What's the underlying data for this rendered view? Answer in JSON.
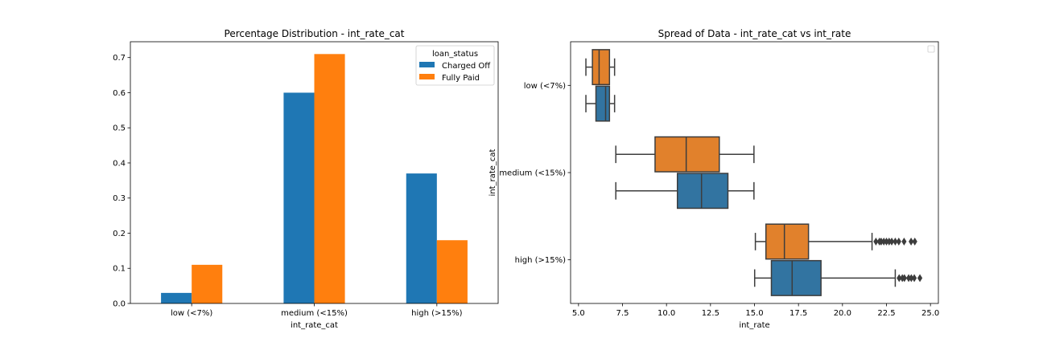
{
  "chart_data": [
    {
      "type": "bar",
      "title": "Percentage Distribution - int_rate_cat",
      "xlabel": "int_rate_cat",
      "ylabel": "",
      "categories": [
        "low (<7%)",
        "medium (<15%)",
        "high (>15%)"
      ],
      "series": [
        {
          "name": "Charged Off",
          "values": [
            0.03,
            0.6,
            0.37
          ],
          "color": "#1f77b4"
        },
        {
          "name": "Fully Paid",
          "values": [
            0.11,
            0.71,
            0.18
          ],
          "color": "#ff7f0e"
        }
      ],
      "ylim": [
        0,
        0.745
      ],
      "yticks": [
        "0.0",
        "0.1",
        "0.2",
        "0.3",
        "0.4",
        "0.5",
        "0.6",
        "0.7"
      ],
      "legend": {
        "title": "loan_status",
        "placement": "top-right"
      },
      "grid": false
    },
    {
      "type": "box",
      "orientation": "horizontal",
      "title": "Spread of Data - int_rate_cat vs int_rate",
      "xlabel": "int_rate",
      "ylabel": "int_rate_cat",
      "categories": [
        "low (<7%)",
        "medium (<15%)",
        "high (>15%)"
      ],
      "xlim": [
        4.55,
        25.45
      ],
      "xticks": [
        "5.0",
        "7.5",
        "10.0",
        "12.5",
        "15.0",
        "17.5",
        "20.0",
        "22.5",
        "25.0"
      ],
      "legend": {
        "placement": "top-right",
        "entries": []
      },
      "grid": false,
      "boxes": [
        {
          "category": "low (<7%)",
          "hue": "Fully Paid",
          "color": "#e1812c",
          "whislo": 5.42,
          "q1": 5.79,
          "median": 6.17,
          "q3": 6.76,
          "whishi": 7.05,
          "fliers": []
        },
        {
          "category": "low (<7%)",
          "hue": "Charged Off",
          "color": "#3274a1",
          "whislo": 5.42,
          "q1": 5.99,
          "median": 6.54,
          "q3": 6.76,
          "whishi": 7.05,
          "fliers": []
        },
        {
          "category": "medium (<15%)",
          "hue": "Fully Paid",
          "color": "#e1812c",
          "whislo": 7.12,
          "q1": 9.35,
          "median": 11.12,
          "q3": 13.0,
          "whishi": 14.97,
          "fliers": []
        },
        {
          "category": "medium (<15%)",
          "hue": "Charged Off",
          "color": "#3274a1",
          "whislo": 7.12,
          "q1": 10.62,
          "median": 11.99,
          "q3": 13.49,
          "whishi": 14.97,
          "fliers": []
        },
        {
          "category": "high (>15%)",
          "hue": "Fully Paid",
          "color": "#e1812c",
          "whislo": 15.05,
          "q1": 15.65,
          "median": 16.7,
          "q3": 18.07,
          "whishi": 21.68,
          "fliers": [
            21.9,
            22.1,
            22.2,
            22.35,
            22.5,
            22.65,
            22.8,
            23.0,
            23.2,
            23.5,
            23.9,
            24.11
          ]
        },
        {
          "category": "high (>15%)",
          "hue": "Charged Off",
          "color": "#3274a1",
          "whislo": 15.01,
          "q1": 15.96,
          "median": 17.14,
          "q3": 18.78,
          "whishi": 23.0,
          "fliers": [
            23.22,
            23.4,
            23.52,
            23.76,
            23.91,
            24.08,
            24.4
          ]
        }
      ]
    }
  ]
}
